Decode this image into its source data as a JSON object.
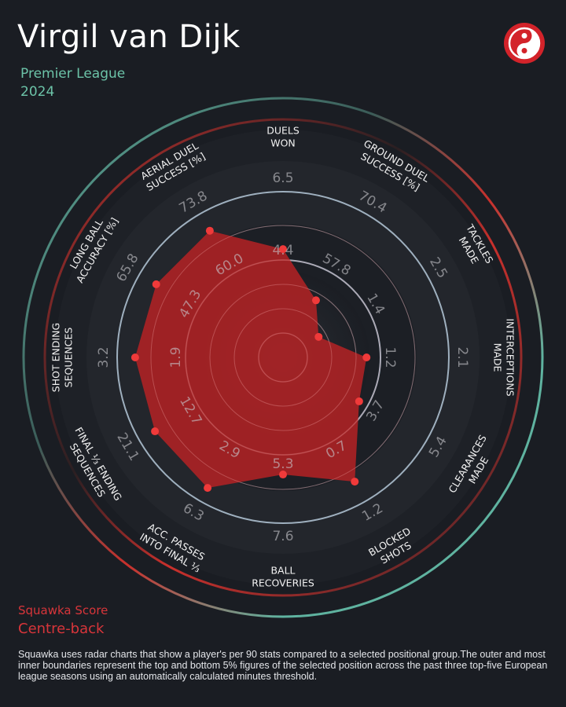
{
  "header": {
    "player_name": "Virgil van Dijk",
    "league": "Premier League",
    "season": "2024",
    "logo_icon": "squawka-logo-icon"
  },
  "footer": {
    "score_label": "Squawka Score",
    "position": "Centre-back",
    "note": "Squawka uses radar charts that show a player's per 90 stats compared to a selected positional group.The outer and most inner boundaries represent the top and bottom 5% figures of the selected position across the past three top-five European league seasons using an automatically calculated minutes threshold."
  },
  "colors": {
    "background": "#1a1d23",
    "fill": "#a82327",
    "point": "#f03a3a",
    "teal": "#5fb3a0",
    "red": "#c9302c",
    "ring": "#9fb0bf"
  },
  "chart_data": {
    "type": "radar",
    "title": "Virgil van Dijk",
    "scale": "percentile-normalized (0 = bottom 5%, 1 = top 5%)",
    "axes": [
      {
        "label": [
          "DUELS",
          "WON"
        ],
        "ticks": [
          "4.4",
          "6.5"
        ],
        "value": 0.58
      },
      {
        "label": [
          "GROUND DUEL",
          "SUCCESS [%]"
        ],
        "ticks": [
          "57.8",
          "70.4"
        ],
        "value": 0.29
      },
      {
        "label": [
          "TACKLES",
          "MADE"
        ],
        "ticks": [
          "1.4",
          "2.5"
        ],
        "value": 0.12
      },
      {
        "label": [
          "INTERCEPTIONS",
          "MADE"
        ],
        "ticks": [
          "1.2",
          "2.1"
        ],
        "value": 0.41
      },
      {
        "label": [
          "CLEARANCES",
          "MADE"
        ],
        "ticks": [
          "3.7",
          "5.4"
        ],
        "value": 0.44
      },
      {
        "label": [
          "BLOCKED",
          "SHOTS"
        ],
        "ticks": [
          "0.7",
          "1.2"
        ],
        "value": 0.82
      },
      {
        "label": [
          "BALL",
          "RECOVERIES"
        ],
        "ticks": [
          "5.3",
          "7.6"
        ],
        "value": 0.64
      },
      {
        "label": [
          "ACC. PASSES",
          "INTO FINAL ⅓"
        ],
        "ticks": [
          "2.9",
          "6.3"
        ],
        "value": 0.87
      },
      {
        "label": [
          "FINAL ⅓ ENDING",
          "SEQUENCES"
        ],
        "ticks": [
          "12.7",
          "21.1"
        ],
        "value": 0.85
      },
      {
        "label": [
          "SHOT ENDING",
          "SEQUENCES"
        ],
        "ticks": [
          "1.9",
          "3.2"
        ],
        "value": 0.85
      },
      {
        "label": [
          "LONG BALL",
          "ACCURACY [%]"
        ],
        "ticks": [
          "47.3",
          "65.8"
        ],
        "value": 0.84
      },
      {
        "label": [
          "AERIAL DUEL",
          "SUCCESS [%]"
        ],
        "ticks": [
          "60.0",
          "73.8"
        ],
        "value": 0.84
      }
    ]
  }
}
